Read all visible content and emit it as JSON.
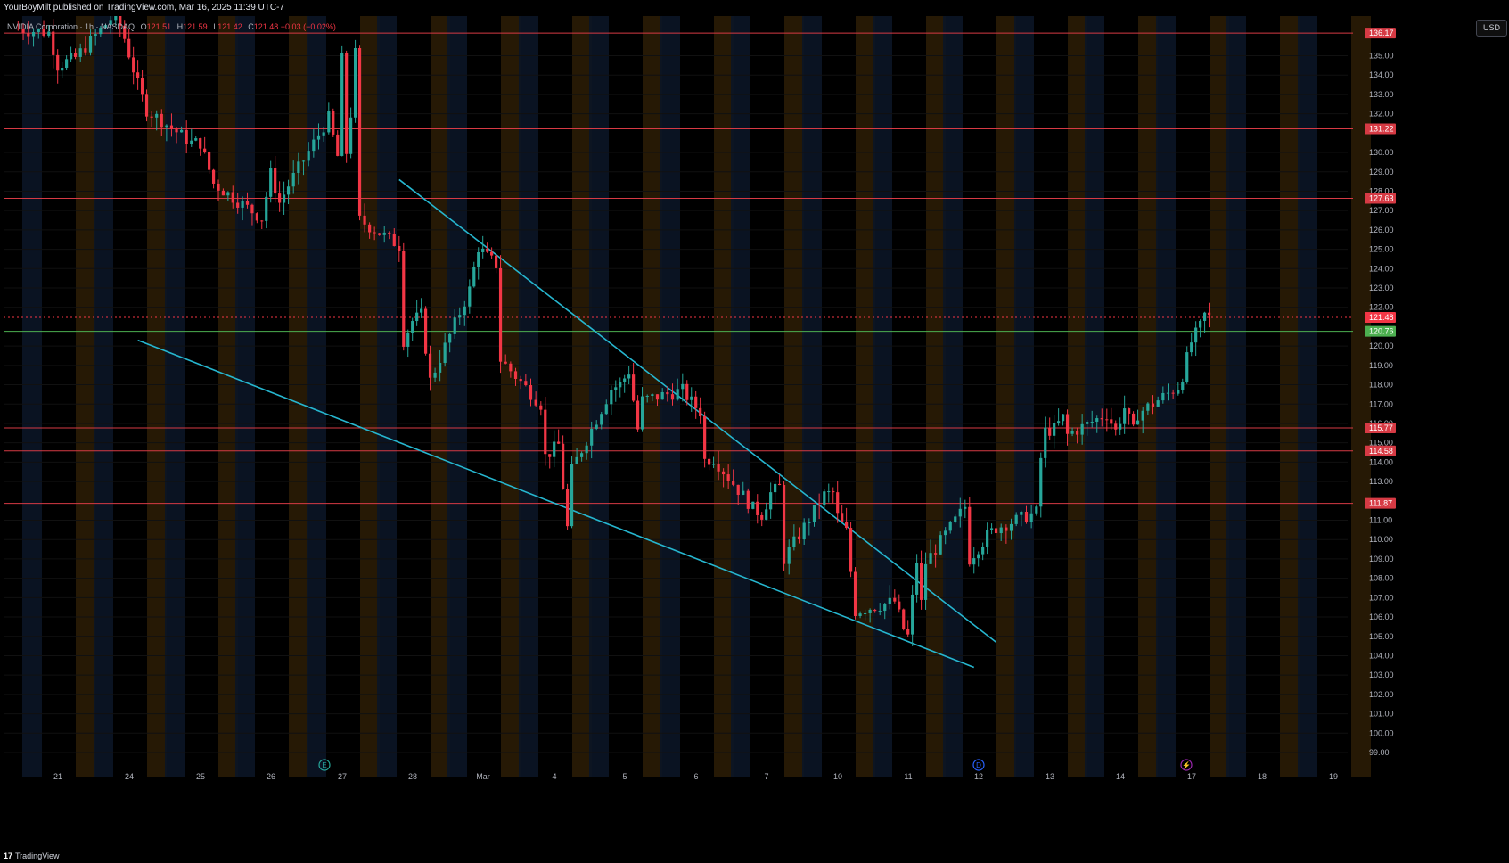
{
  "header": {
    "publisher_line": "YourBoyMilt published on TradingView.com, Mar 16, 2025 11:39 UTC-7"
  },
  "legend": {
    "symbol": "NVIDIA Corporation · 1h · NASDAQ",
    "open_label": "O",
    "open": "121.51",
    "high_label": "H",
    "high": "121.59",
    "low_label": "L",
    "low": "121.42",
    "close_label": "C",
    "close": "121.48",
    "change": "−0.03 (−0.02%)"
  },
  "currency_button": "USD",
  "footer": {
    "logo_icon": "tradingview-logo-icon",
    "brand": "TradingView"
  },
  "colors": {
    "up": "#26a69a",
    "down": "#f23645",
    "trendline": "#26b6cf",
    "level_line": "#d63a44",
    "price_line": "#4caf50",
    "session_orange": "#2a1c05",
    "session_blue": "#0b1526"
  },
  "chart_data": {
    "type": "candlestick",
    "symbol": "NVDA",
    "interval": "1h",
    "y_axis": {
      "ticks": [
        "135.00",
        "134.00",
        "133.00",
        "132.00",
        "130.00",
        "129.00",
        "128.00",
        "127.00",
        "126.00",
        "125.00",
        "124.00",
        "123.00",
        "122.00",
        "120.00",
        "119.00",
        "118.00",
        "117.00",
        "116.00",
        "115.00",
        "114.00",
        "113.00",
        "111.00",
        "110.00",
        "109.00",
        "108.00",
        "107.00",
        "106.00",
        "105.00",
        "104.00",
        "103.00",
        "102.00",
        "101.00",
        "100.00",
        "99.00"
      ],
      "range": [
        98.5,
        136.1
      ]
    },
    "x_axis": {
      "ticks": [
        "21",
        "24",
        "25",
        "26",
        "27",
        "28",
        "Mar",
        "4",
        "5",
        "6",
        "7",
        "10",
        "11",
        "12",
        "13",
        "14",
        "17",
        "18",
        "19"
      ]
    },
    "horizontal_levels": [
      {
        "price": 136.17,
        "label": "136.17",
        "kind": "level"
      },
      {
        "price": 131.22,
        "label": "131.22",
        "kind": "level"
      },
      {
        "price": 127.63,
        "label": "127.63",
        "kind": "level"
      },
      {
        "price": 115.77,
        "label": "115.77",
        "kind": "level"
      },
      {
        "price": 114.58,
        "label": "114.58",
        "kind": "level"
      },
      {
        "price": 111.87,
        "label": "111.87",
        "kind": "level"
      },
      {
        "price": 120.76,
        "label": "120.76",
        "kind": "support"
      },
      {
        "price": 121.48,
        "label": "121.48",
        "kind": "last"
      }
    ],
    "trendlines": [
      {
        "name": "upper",
        "from": {
          "date": "Feb 28 09:00",
          "price": 128.6
        },
        "to": {
          "date": "Mar 12 16:00",
          "price": 104.7
        }
      },
      {
        "name": "lower",
        "from": {
          "date": "Feb 24 14:00",
          "price": 120.3
        },
        "to": {
          "date": "Mar 12 11:00",
          "price": 103.4
        }
      }
    ],
    "event_markers": [
      {
        "date": "Feb 26",
        "icon": "earnings-icon",
        "text": "E"
      },
      {
        "date": "Mar 12",
        "icon": "dividend-icon",
        "text": "D"
      },
      {
        "date": "Mar 17",
        "icon": "split-icon",
        "text": "⚡"
      }
    ],
    "anchors": [
      {
        "date": "Feb 20 15:00",
        "price": 136.4
      },
      {
        "date": "Feb 21 10:00",
        "price": 136.2
      },
      {
        "date": "Feb 21 12:00",
        "price": 134.5
      },
      {
        "date": "Feb 21 16:00",
        "price": 134.9
      },
      {
        "date": "Feb 24 09:00",
        "price": 137.2
      },
      {
        "date": "Feb 24 11:00",
        "price": 135.9
      },
      {
        "date": "Feb 24 14:00",
        "price": 133.5
      },
      {
        "date": "Feb 24 16:00",
        "price": 132.2
      },
      {
        "date": "Feb 25 10:00",
        "price": 130.5
      },
      {
        "date": "Feb 25 12:00",
        "price": 130.5
      },
      {
        "date": "Feb 25 15:00",
        "price": 128.4
      },
      {
        "date": "Feb 26 10:00",
        "price": 126.6
      },
      {
        "date": "Feb 26 12:00",
        "price": 128.9
      },
      {
        "date": "Feb 26 14:00",
        "price": 127.4
      },
      {
        "date": "Feb 26 16:00",
        "price": 128.3
      },
      {
        "date": "Feb 27 09:00",
        "price": 131.8
      },
      {
        "date": "Feb 27 11:00",
        "price": 129.8
      },
      {
        "date": "Feb 27 12:00",
        "price": 134.8
      },
      {
        "date": "Feb 27 13:00",
        "price": 130.0
      },
      {
        "date": "Feb 27 14:00",
        "price": 132.0
      },
      {
        "date": "Feb 27 15:00",
        "price": 135.1
      },
      {
        "date": "Feb 27 16:00",
        "price": 126.5
      },
      {
        "date": "Feb 28 09:00",
        "price": 125.2
      },
      {
        "date": "Feb 28 10:00",
        "price": 120.3
      },
      {
        "date": "Feb 28 12:00",
        "price": 121.3
      },
      {
        "date": "Feb 28 14:00",
        "price": 121.6
      },
      {
        "date": "Feb 28 16:00",
        "price": 118.2
      },
      {
        "date": "Mar 3 09:00",
        "price": 122.9
      },
      {
        "date": "Mar 3 11:00",
        "price": 125.1
      },
      {
        "date": "Mar 3 13:00",
        "price": 124.6
      },
      {
        "date": "Mar 3 15:00",
        "price": 124.2
      },
      {
        "date": "Mar 3 16:00",
        "price": 119.3
      },
      {
        "date": "Mar 4 09:00",
        "price": 117.0
      },
      {
        "date": "Mar 4 10:00",
        "price": 114.3
      },
      {
        "date": "Mar 4 13:00",
        "price": 114.9
      },
      {
        "date": "Mar 4 15:00",
        "price": 110.6
      },
      {
        "date": "Mar 4 16:00",
        "price": 113.6
      },
      {
        "date": "Mar 5 09:00",
        "price": 117.8
      },
      {
        "date": "Mar 5 11:00",
        "price": 118.0
      },
      {
        "date": "Mar 5 13:00",
        "price": 118.7
      },
      {
        "date": "Mar 5 15:00",
        "price": 115.7
      },
      {
        "date": "Mar 5 16:00",
        "price": 117.2
      },
      {
        "date": "Mar 6 09:00",
        "price": 117.7
      },
      {
        "date": "Mar 6 11:00",
        "price": 117.1
      },
      {
        "date": "Mar 6 13:00",
        "price": 116.6
      },
      {
        "date": "Mar 6 14:00",
        "price": 114.1
      },
      {
        "date": "Mar 6 16:00",
        "price": 114.2
      },
      {
        "date": "Mar 7 09:00",
        "price": 111.6
      },
      {
        "date": "Mar 7 11:00",
        "price": 111.3
      },
      {
        "date": "Mar 7 13:00",
        "price": 112.4
      },
      {
        "date": "Mar 7 15:00",
        "price": 112.7
      },
      {
        "date": "Mar 7 16:00",
        "price": 109.0
      },
      {
        "date": "Mar 10 09:00",
        "price": 112.3
      },
      {
        "date": "Mar 10 11:00",
        "price": 112.4
      },
      {
        "date": "Mar 10 12:00",
        "price": 111.2
      },
      {
        "date": "Mar 10 14:00",
        "price": 110.4
      },
      {
        "date": "Mar 10 16:00",
        "price": 106.3
      },
      {
        "date": "Mar 11 09:00",
        "price": 106.8
      },
      {
        "date": "Mar 11 11:00",
        "price": 105.4
      },
      {
        "date": "Mar 11 12:00",
        "price": 105.0
      },
      {
        "date": "Mar 11 14:00",
        "price": 108.9
      },
      {
        "date": "Mar 11 15:00",
        "price": 106.7
      },
      {
        "date": "Mar 11 16:00",
        "price": 108.8
      },
      {
        "date": "Mar 12 09:00",
        "price": 111.7
      },
      {
        "date": "Mar 12 10:00",
        "price": 109.0
      },
      {
        "date": "Mar 12 12:00",
        "price": 109.6
      },
      {
        "date": "Mar 12 14:00",
        "price": 110.2
      },
      {
        "date": "Mar 12 16:00",
        "price": 110.6
      },
      {
        "date": "Mar 13 09:00",
        "price": 111.4
      },
      {
        "date": "Mar 13 10:00",
        "price": 114.2
      },
      {
        "date": "Mar 13 11:00",
        "price": 115.6
      },
      {
        "date": "Mar 13 13:00",
        "price": 115.7
      },
      {
        "date": "Mar 13 15:00",
        "price": 116.3
      },
      {
        "date": "Mar 13 16:00",
        "price": 115.4
      },
      {
        "date": "Mar 14 09:00",
        "price": 116.5
      },
      {
        "date": "Mar 14 11:00",
        "price": 115.6
      },
      {
        "date": "Mar 14 13:00",
        "price": 116.8
      },
      {
        "date": "Mar 14 15:00",
        "price": 115.6
      },
      {
        "date": "Mar 14 16:00",
        "price": 116.5
      },
      {
        "date": "Mar 17 09:00",
        "price": 117.9
      },
      {
        "date": "Mar 17 10:00",
        "price": 118.5
      },
      {
        "date": "Mar 17 12:00",
        "price": 120.2
      },
      {
        "date": "Mar 17 14:00",
        "price": 121.0
      },
      {
        "date": "Mar 17 15:00",
        "price": 121.6
      },
      {
        "date": "Mar 17 16:00",
        "price": 121.48
      }
    ]
  }
}
